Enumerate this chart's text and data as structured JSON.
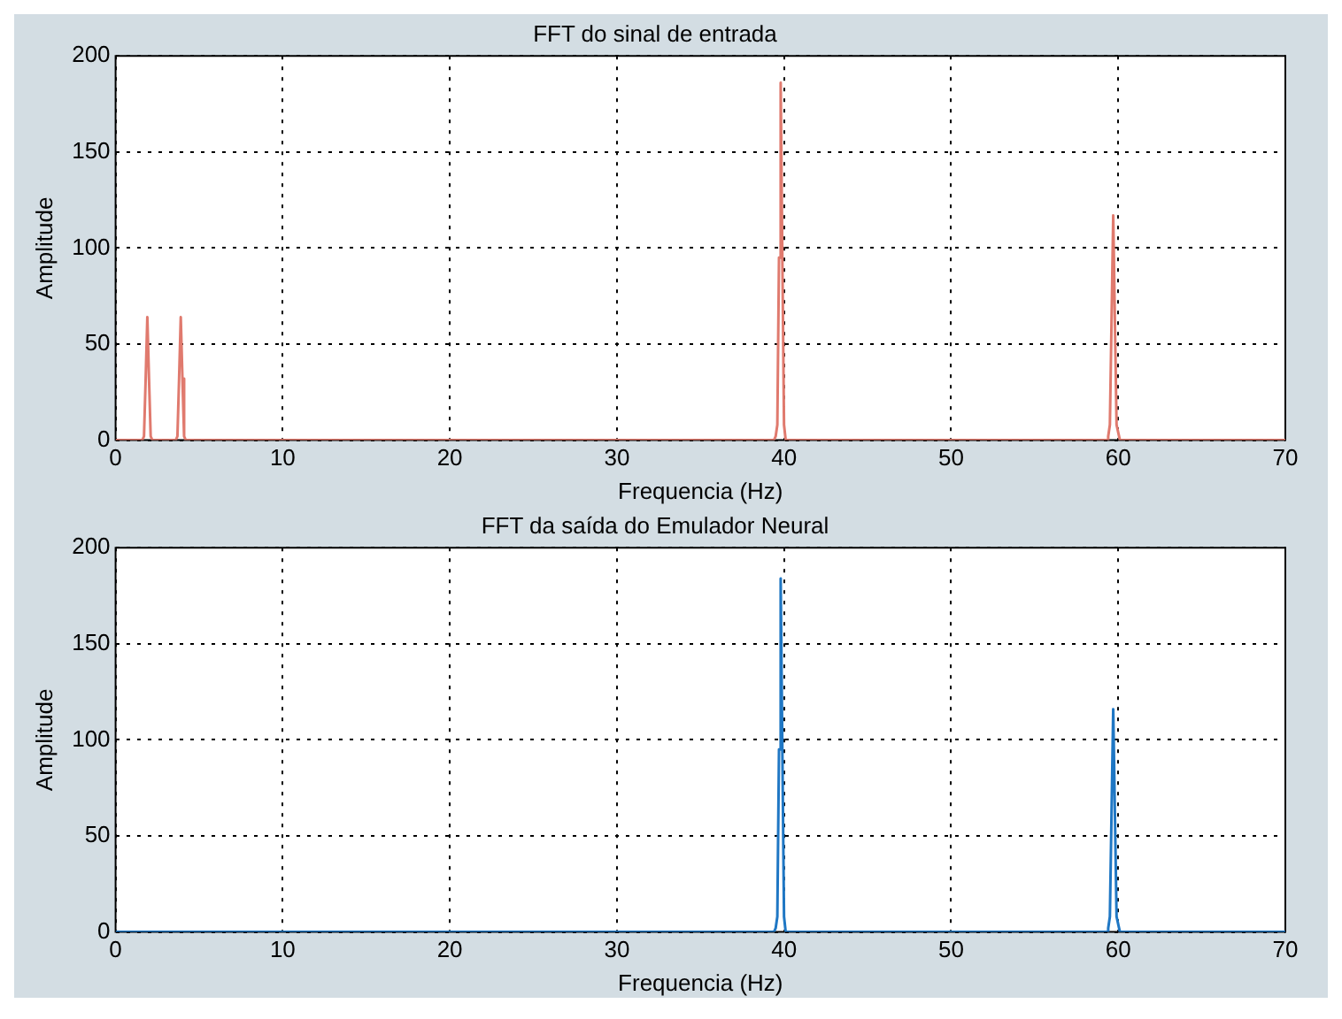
{
  "chart_data": [
    {
      "type": "line",
      "title": "FFT do sinal de entrada",
      "xlabel": "Frequencia (Hz)",
      "ylabel": "Amplitude",
      "xlim": [
        0,
        70
      ],
      "xticks": [
        0,
        10,
        20,
        30,
        40,
        50,
        60,
        70
      ],
      "ylim": [
        0,
        200
      ],
      "yticks": [
        0,
        50,
        100,
        150,
        200
      ],
      "grid": true,
      "legend": false,
      "marker": "none",
      "line_style": "solid",
      "series": [
        {
          "color": "#e07a6e",
          "x": [
            0,
            1.6,
            1.7,
            1.8,
            1.9,
            2.0,
            2.1,
            2.2,
            3.6,
            3.7,
            3.8,
            3.9,
            4.0,
            4.1,
            4.2,
            39.4,
            39.5,
            39.6,
            39.7,
            39.8,
            39.9,
            40.0,
            40.1,
            59.3,
            59.4,
            59.5,
            59.6,
            59.7,
            59.8,
            59.9,
            60.1,
            70
          ],
          "values": [
            0,
            0,
            2,
            32,
            64,
            32,
            2,
            0,
            0,
            2,
            32,
            64,
            32,
            2,
            0,
            0,
            2,
            8,
            95,
            186,
            95,
            8,
            0,
            0,
            2,
            8,
            62,
            117,
            62,
            8,
            0,
            0
          ]
        }
      ]
    },
    {
      "type": "line",
      "title": "FFT da saída do Emulador Neural",
      "xlabel": "Frequencia (Hz)",
      "ylabel": "Amplitude",
      "xlim": [
        0,
        70
      ],
      "xticks": [
        0,
        10,
        20,
        30,
        40,
        50,
        60,
        70
      ],
      "ylim": [
        0,
        200
      ],
      "yticks": [
        0,
        50,
        100,
        150,
        200
      ],
      "grid": true,
      "legend": false,
      "marker": "none",
      "line_style": "solid",
      "series": [
        {
          "color": "#1f77c4",
          "x": [
            0,
            39.4,
            39.5,
            39.6,
            39.7,
            39.8,
            39.9,
            40.0,
            40.1,
            59.3,
            59.4,
            59.5,
            59.6,
            59.7,
            59.8,
            59.9,
            60.1,
            70
          ],
          "values": [
            0,
            0,
            2,
            8,
            95,
            184,
            95,
            8,
            0,
            0,
            2,
            8,
            62,
            116,
            62,
            8,
            0,
            0
          ]
        }
      ]
    }
  ]
}
